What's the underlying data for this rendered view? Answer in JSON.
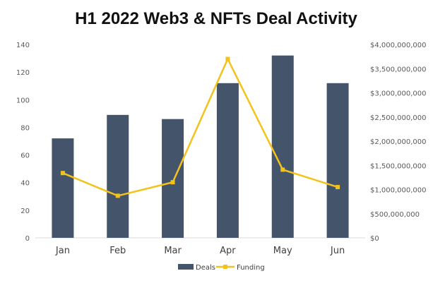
{
  "chart_data": {
    "type": "bar",
    "title": "H1 2022 Web3 & NFTs Deal Activity",
    "categories": [
      "Jan",
      "Feb",
      "Mar",
      "Apr",
      "May",
      "Jun"
    ],
    "series": [
      {
        "name": "Deals",
        "type": "bar",
        "axis": "left",
        "values": [
          72,
          89,
          86,
          112,
          132,
          112
        ]
      },
      {
        "name": "Funding",
        "type": "line",
        "axis": "right",
        "values": [
          1340000000,
          870000000,
          1150000000,
          3700000000,
          1410000000,
          1050000000
        ]
      }
    ],
    "left_axis": {
      "ylim": [
        0,
        140
      ],
      "ticks": [
        "0",
        "20",
        "40",
        "60",
        "80",
        "100",
        "120",
        "140"
      ]
    },
    "right_axis": {
      "ylim": [
        0,
        4000000000
      ],
      "ticks": [
        "$0",
        "$500,000,000",
        "$1,000,000,000",
        "$1,500,000,000",
        "$2,000,000,000",
        "$2,500,000,000",
        "$3,000,000,000",
        "$3,500,000,000",
        "$4,000,000,000"
      ]
    },
    "legend": {
      "placement": "bottom"
    },
    "grid": false,
    "colors": {
      "Deals": "#44546A",
      "Funding": "#F2C31B"
    }
  }
}
